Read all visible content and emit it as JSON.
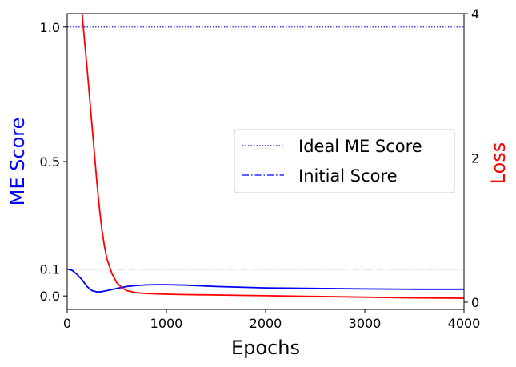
{
  "chart_data": {
    "type": "line",
    "xlabel": "Epochs",
    "ylabel_left": "ME Score",
    "ylabel_right": "Loss",
    "xlim": [
      0,
      4000
    ],
    "ylim_left": [
      -0.05,
      1.05
    ],
    "ylim_right": [
      -0.1,
      4
    ],
    "xticks": [
      0,
      1000,
      2000,
      3000,
      4000
    ],
    "xtick_labels": [
      "0",
      "1000",
      "2000",
      "3000",
      "4000"
    ],
    "yticks_left": [
      0.0,
      0.1,
      0.5,
      1.0
    ],
    "ytick_labels_left": [
      "0.0",
      "0.1",
      "0.5",
      "1.0"
    ],
    "yticks_right": [
      0,
      2,
      4
    ],
    "ytick_labels_right": [
      "0",
      "2",
      "4"
    ],
    "grid": false,
    "legend_position": "center-right",
    "reference_lines": [
      {
        "name": "Ideal ME Score",
        "y": 1.0,
        "axis": "left",
        "style": "dotted",
        "color": "#0000ff"
      },
      {
        "name": "Initial Score",
        "y": 0.1,
        "axis": "left",
        "style": "dashdot",
        "color": "#0000ff"
      }
    ],
    "series": [
      {
        "axis": "left",
        "color": "#0000ff",
        "x": [
          0,
          50,
          100,
          150,
          200,
          250,
          300,
          350,
          400,
          500,
          600,
          700,
          800,
          900,
          1000,
          1200,
          1500,
          2000,
          2500,
          3000,
          3500,
          4000
        ],
        "y": [
          0.1,
          0.095,
          0.08,
          0.06,
          0.035,
          0.02,
          0.015,
          0.016,
          0.02,
          0.028,
          0.035,
          0.039,
          0.041,
          0.042,
          0.042,
          0.04,
          0.035,
          0.03,
          0.028,
          0.026,
          0.025,
          0.025
        ]
      },
      {
        "axis": "right",
        "color": "#ff0000",
        "x": [
          150,
          175,
          200,
          225,
          250,
          275,
          300,
          325,
          350,
          375,
          400,
          450,
          500,
          550,
          600,
          700,
          800,
          900,
          1000,
          1200,
          1500,
          2000,
          2500,
          3000,
          3500,
          4000
        ],
        "y": [
          4.0,
          3.62,
          3.25,
          2.85,
          2.45,
          2.05,
          1.65,
          1.3,
          1.0,
          0.78,
          0.6,
          0.4,
          0.27,
          0.2,
          0.16,
          0.13,
          0.12,
          0.115,
          0.11,
          0.105,
          0.1,
          0.09,
          0.08,
          0.07,
          0.06,
          0.055
        ]
      }
    ]
  }
}
